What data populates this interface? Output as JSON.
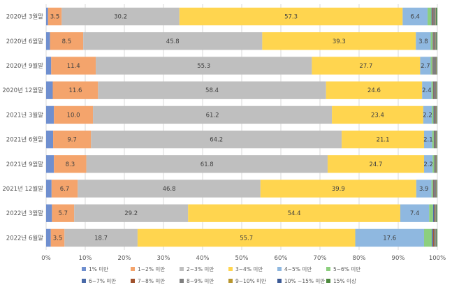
{
  "chart_data": {
    "type": "bar",
    "orientation": "horizontal",
    "stacked": "percent",
    "title": "",
    "xlabel": "",
    "ylabel": "",
    "xlim": [
      0,
      100
    ],
    "x_ticks": [
      "0%",
      "10%",
      "20%",
      "30%",
      "40%",
      "50%",
      "60%",
      "70%",
      "80%",
      "90%",
      "100%"
    ],
    "grid": true,
    "legend_position": "bottom",
    "categories": [
      "2020년 3월말",
      "2020년 6월말",
      "2020년 9월말",
      "2020년 12월말",
      "2021년 3월말",
      "2021년 6월말",
      "2021년 9월말",
      "2021년 12월말",
      "2022년 3월말",
      "2022년 6월말"
    ],
    "series": [
      {
        "name": "1% 미만",
        "color": "#6f8fcf",
        "values": [
          0.5,
          1.0,
          1.3,
          1.7,
          2.0,
          1.8,
          2.0,
          1.4,
          1.5,
          1.2
        ]
      },
      {
        "name": "1~2% 미만",
        "color": "#f4a46c",
        "values": [
          3.5,
          8.5,
          11.4,
          11.6,
          10.0,
          9.7,
          8.3,
          6.7,
          5.7,
          3.5
        ]
      },
      {
        "name": "2~3% 미만",
        "color": "#bfbfbf",
        "values": [
          30.2,
          45.8,
          55.3,
          58.4,
          61.2,
          64.2,
          61.8,
          46.8,
          29.2,
          18.7
        ]
      },
      {
        "name": "3~4% 미만",
        "color": "#ffd54f",
        "values": [
          57.3,
          39.3,
          27.7,
          24.6,
          23.4,
          21.1,
          24.7,
          39.9,
          54.4,
          55.7
        ]
      },
      {
        "name": "4~5% 미만",
        "color": "#8fb8e0",
        "values": [
          6.4,
          3.8,
          2.7,
          2.4,
          2.2,
          2.1,
          2.2,
          3.9,
          7.4,
          17.6
        ]
      },
      {
        "name": "5~6% 미만",
        "color": "#8ccf7e",
        "values": [
          1.0,
          0.5,
          0.4,
          0.4,
          0.4,
          0.4,
          0.4,
          0.4,
          1.0,
          2.0
        ]
      },
      {
        "name": "6~7% 미만",
        "color": "#4a6aa8",
        "values": [
          0.2,
          0.1,
          0.1,
          0.1,
          0.1,
          0.1,
          0.1,
          0.1,
          0.2,
          0.3
        ]
      },
      {
        "name": "7~8% 미만",
        "color": "#a0522d",
        "values": [
          0.2,
          0.1,
          0.1,
          0.1,
          0.1,
          0.1,
          0.1,
          0.1,
          0.1,
          0.2
        ]
      },
      {
        "name": "8~9% 미만",
        "color": "#7f7f7f",
        "values": [
          0.6,
          0.6,
          0.8,
          0.6,
          0.5,
          0.4,
          0.3,
          0.6,
          0.4,
          0.5
        ]
      },
      {
        "name": "9~10% 미만",
        "color": "#b8962e",
        "values": [
          0.1,
          0.1,
          0.1,
          0.1,
          0.1,
          0.1,
          0.1,
          0.1,
          0.1,
          0.1
        ]
      },
      {
        "name": "10% ~15% 미만",
        "color": "#3c5a96",
        "values": [
          0.1,
          0.1,
          0.1,
          0.1,
          0.1,
          0.1,
          0.1,
          0.1,
          0.1,
          0.1
        ]
      },
      {
        "name": "15% 이상",
        "color": "#4e8a3e",
        "values": [
          0.3,
          0.2,
          0.1,
          0.1,
          0.1,
          0.1,
          0.1,
          0.1,
          0.2,
          0.2
        ]
      }
    ],
    "data_labels": {
      "1~2% 미만": [
        "3.5",
        "8.5",
        "11.4",
        "11.6",
        "10.0",
        "9.7",
        "8.3",
        "6.7",
        "5.7",
        "3.5"
      ],
      "2~3% 미만": [
        "30.2",
        "45.8",
        "55.3",
        "58.4",
        "61.2",
        "64.2",
        "61.8",
        "46.8",
        "29.2",
        "18.7"
      ],
      "3~4% 미만": [
        "57.3",
        "39.3",
        "27.7",
        "24.6",
        "23.4",
        "21.1",
        "24.7",
        "39.9",
        "54.4",
        "55.7"
      ],
      "4~5% 미만": [
        "6.4",
        "3.8",
        "2.7",
        "2.4",
        "2.2",
        "2.1",
        "2.2",
        "3.9",
        "7.4",
        "17.6"
      ]
    }
  }
}
